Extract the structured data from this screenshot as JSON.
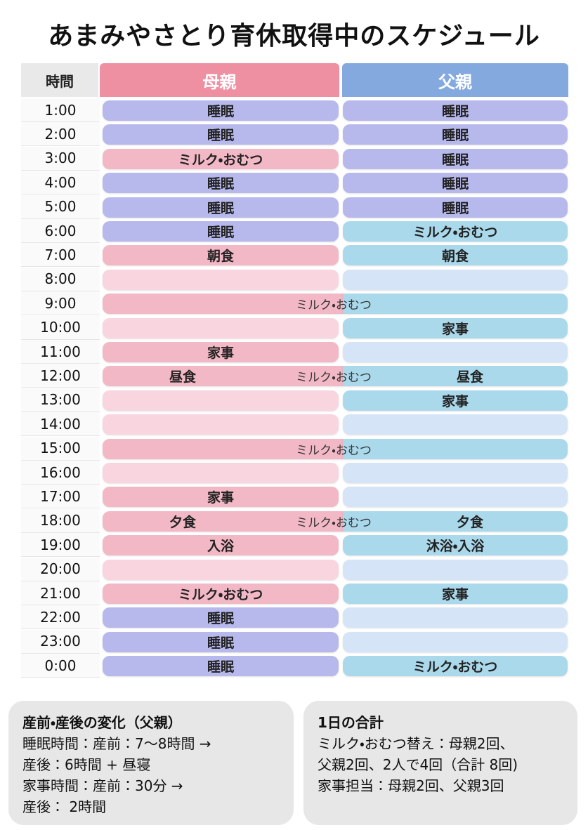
{
  "header": {
    "title": "あまみやさとり育休取得中のスケジュール",
    "time": "時間",
    "mother": {
      "text": "母親",
      "color": "#ee8fa2"
    },
    "father": {
      "text": "父親",
      "color": "#84a9df"
    }
  },
  "rows": [
    {
      "time": "1:00",
      "mother": {
        "text": "睡眠",
        "color": "#b7b8ec"
      },
      "father": {
        "text": "睡眠",
        "color": "#b7b8ec"
      }
    },
    {
      "time": "2:00",
      "mother": {
        "text": "睡眠",
        "color": "#b7b8ec"
      },
      "father": {
        "text": "睡眠",
        "color": "#b7b8ec"
      }
    },
    {
      "time": "3:00",
      "mother": {
        "text": "ミルク・おむつ",
        "color": "#f3b8c6"
      },
      "father": {
        "text": "睡眠",
        "color": "#b7b8ec"
      }
    },
    {
      "time": "4:00",
      "mother": {
        "text": "睡眠",
        "color": "#b7b8ec"
      },
      "father": {
        "text": "睡眠",
        "color": "#b7b8ec"
      }
    },
    {
      "time": "5:00",
      "mother": {
        "text": "睡眠",
        "color": "#b7b8ec"
      },
      "father": {
        "text": "睡眠",
        "color": "#b7b8ec"
      }
    },
    {
      "time": "6:00",
      "mother": {
        "text": "睡眠",
        "color": "#b7b8ec"
      },
      "father": {
        "text": "ミルク・おむつ",
        "color": "#abd9ec"
      }
    },
    {
      "time": "7:00",
      "mother": {
        "text": "朝食",
        "color": "#f3b8c6"
      },
      "father": {
        "text": "朝食",
        "color": "#abd9ec"
      }
    },
    {
      "time": "8:00",
      "mother": {
        "color": "#f9d6df"
      },
      "father": {
        "color": "#d5e5f7"
      }
    },
    {
      "time": "9:00",
      "mother": {
        "color": "#f3b8c6"
      },
      "father": {
        "color": "#abd9ec"
      },
      "shared": "ミルク・おむつ"
    },
    {
      "time": "10:00",
      "mother": {
        "color": "#f9d6df"
      },
      "father": {
        "text": "家事",
        "color": "#abd9ec"
      }
    },
    {
      "time": "11:00",
      "mother": {
        "text": "家事",
        "color": "#f3b8c6"
      },
      "father": {
        "color": "#d5e5f7"
      }
    },
    {
      "time": "12:00",
      "mother": {
        "text": "昼食",
        "color": "#f3b8c6"
      },
      "father": {
        "text": "昼食",
        "color": "#abd9ec"
      },
      "shared": "ミルク・おむつ"
    },
    {
      "time": "13:00",
      "mother": {
        "color": "#f9d6df"
      },
      "father": {
        "text": "家事",
        "color": "#abd9ec"
      }
    },
    {
      "time": "14:00",
      "mother": {
        "color": "#f9d6df"
      },
      "father": {
        "color": "#d5e5f7"
      }
    },
    {
      "time": "15:00",
      "mother": {
        "color": "#f3b8c6"
      },
      "father": {
        "color": "#abd9ec"
      },
      "shared": "ミルク・おむつ"
    },
    {
      "time": "16:00",
      "mother": {
        "color": "#f9d6df"
      },
      "father": {
        "color": "#d5e5f7"
      }
    },
    {
      "time": "17:00",
      "mother": {
        "text": "家事",
        "color": "#f3b8c6"
      },
      "father": {
        "color": "#d5e5f7"
      }
    },
    {
      "time": "18:00",
      "mother": {
        "text": "夕食",
        "color": "#f3b8c6"
      },
      "father": {
        "text": "夕食",
        "color": "#abd9ec"
      },
      "shared": "ミルク・おむつ"
    },
    {
      "time": "19:00",
      "mother": {
        "text": "入浴",
        "color": "#f3b8c6"
      },
      "father": {
        "text": "沐浴・入浴",
        "color": "#abd9ec"
      }
    },
    {
      "time": "20:00",
      "mother": {
        "color": "#f9d6df"
      },
      "father": {
        "color": "#d5e5f7"
      }
    },
    {
      "time": "21:00",
      "mother": {
        "text": "ミルク・おむつ",
        "color": "#f3b8c6"
      },
      "father": {
        "text": "家事",
        "color": "#abd9ec"
      }
    },
    {
      "time": "22:00",
      "mother": {
        "text": "睡眠",
        "color": "#b7b8ec"
      },
      "father": {
        "color": "#d5e5f7"
      }
    },
    {
      "time": "23:00",
      "mother": {
        "text": "睡眠",
        "color": "#b7b8ec"
      },
      "father": {
        "color": "#d5e5f7"
      }
    },
    {
      "time": "0:00",
      "mother": {
        "text": "睡眠",
        "color": "#b7b8ec"
      },
      "father": {
        "text": "ミルク・おむつ",
        "color": "#abd9ec"
      }
    }
  ],
  "notes": [
    {
      "title": "産前・産後の変化（父親）",
      "lines": [
        "睡眠時間：産前：7〜8時間 →",
        "産後：6時間 + 昼寝",
        "家事時間：産前：30分 →",
        "産後： 2時間"
      ]
    },
    {
      "title": "1日の合計",
      "lines": [
        "ミルク・おむつ替え：母親2回、",
        "父親2回、2人で4回（合計 8回)",
        "家事担当：母親2回、父親3回"
      ]
    }
  ]
}
